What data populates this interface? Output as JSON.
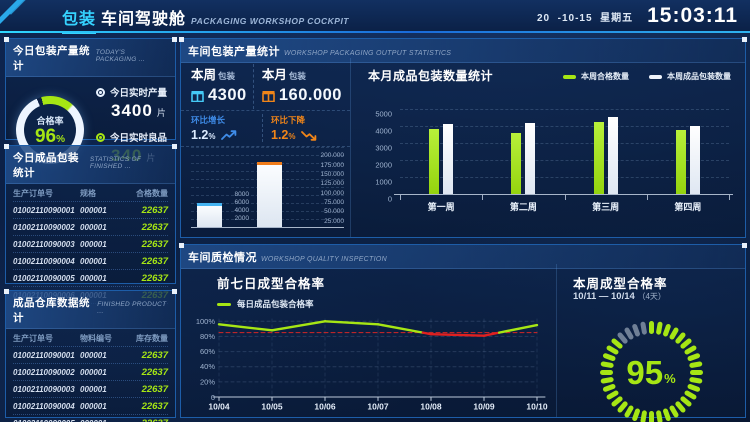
{
  "header": {
    "title_highlight": "包装",
    "title_rest": "车间驾驶舱",
    "subtitle_en": "PACKAGING WORKSHOP COCKPIT",
    "date": "20  -10-15",
    "weekday": "星期五",
    "time": "15:03:11"
  },
  "colors": {
    "accent_cyan": "#35d3ff",
    "accent_green": "#a6e614",
    "accent_orange": "#f08519",
    "accent_blue": "#3f8ce8",
    "alert_red": "#d42626",
    "bar_white": "#eef3fa",
    "panel_border": "#1d5da8"
  },
  "panels": {
    "today": {
      "title": "今日包装产量统计",
      "subtitle_en": "TODAY'S PACKAGING ...",
      "gauge": {
        "label": "合格率",
        "value": "96",
        "unit": "%"
      },
      "metrics": [
        {
          "label": "今日实时产量",
          "value": "3400",
          "unit": "片"
        },
        {
          "label": "今日实时良品",
          "value": "340",
          "unit": "片"
        }
      ]
    },
    "finished": {
      "title": "今日成品包装统计",
      "subtitle_en": "STATISTICS OF FINISHED ...",
      "columns": [
        "生产订单号",
        "规格",
        "合格数量"
      ],
      "rows": [
        [
          "01002110090001",
          "000001",
          "22637"
        ],
        [
          "01002110090002",
          "000001",
          "22637"
        ],
        [
          "01002110090003",
          "000001",
          "22637"
        ],
        [
          "01002110090004",
          "000001",
          "22637"
        ],
        [
          "01002110090005",
          "000001",
          "22637"
        ],
        [
          "01002110090006",
          "000001",
          "22637"
        ]
      ]
    },
    "warehouse": {
      "title": "成品仓库数据统计",
      "subtitle_en": "FINISHED PRODUCT ...",
      "columns": [
        "生产订单号",
        "物料编号",
        "库存数量"
      ],
      "rows": [
        [
          "01002110090001",
          "000001",
          "22637"
        ],
        [
          "01002110090002",
          "000001",
          "22637"
        ],
        [
          "01002110090003",
          "000001",
          "22637"
        ],
        [
          "01002110090004",
          "000001",
          "22637"
        ],
        [
          "01002110090005",
          "000001",
          "22637"
        ]
      ]
    },
    "workshop": {
      "title": "车间包装产量统计",
      "subtitle_en": "WORKSHOP PACKAGING OUTPUT STATISTICS",
      "week_label": "本周",
      "week_sub": "包装",
      "week_value": "4300",
      "month_label": "本月",
      "month_sub": "包装",
      "month_value": "160.000",
      "growth_label": "环比增长",
      "growth_value": "1.2",
      "growth_unit": "%",
      "decline_label": "环比下降",
      "decline_value": "1.2",
      "decline_unit": "%"
    },
    "quality": {
      "title": "车间质检情况",
      "subtitle_en": "WORKSHOP QUALITY INSPECTION",
      "line_title": "前七日成型合格率",
      "weekly_title": "本周成型合格率",
      "weekly_range": "10/11 — 10/14",
      "weekly_note": "（4天）",
      "weekly_value": "95",
      "weekly_unit": "%"
    }
  },
  "chart_data": [
    {
      "id": "weekly_monthly_output",
      "type": "bar",
      "title": "车间包装产量统计",
      "categories": [
        "本周包装",
        "本月包装"
      ],
      "values": [
        4300,
        160000
      ],
      "left_axis": {
        "ticks": [
          "8000",
          "6000",
          "4000",
          "2000"
        ],
        "max": 16000
      },
      "right_axis": {
        "ticks": [
          "200.000",
          "175.000",
          "150.000",
          "125.000",
          "100.000",
          "75.000",
          "50.000",
          "25.000"
        ],
        "max": 206000
      },
      "grid": true
    },
    {
      "id": "monthly_packaging",
      "type": "bar",
      "title": "本月成品包装数量统计",
      "categories": [
        "第一周",
        "第二周",
        "第三周",
        "第四周"
      ],
      "series": [
        {
          "name": "本周合格数量",
          "color": "#a6e614",
          "values": [
            3850,
            3600,
            4250,
            3750
          ]
        },
        {
          "name": "本周成品包装数量",
          "color": "#eef3fa",
          "values": [
            4100,
            4200,
            4550,
            4000
          ]
        }
      ],
      "y_ticks": [
        0,
        1000,
        2000,
        3000,
        4000,
        5000
      ],
      "ylim": [
        0,
        5000
      ],
      "grid": true,
      "legend_position": "top-right"
    },
    {
      "id": "daily_pass_rate",
      "type": "line",
      "title": "前七日成型合格率",
      "legend": [
        "每日成品包装合格率"
      ],
      "x": [
        "10/04",
        "10/05",
        "10/06",
        "10/07",
        "10/08",
        "10/09",
        "10/10"
      ],
      "values": [
        96,
        88,
        100,
        96,
        83,
        81,
        95
      ],
      "threshold": 85,
      "line_color": "#a6e614",
      "below_threshold_color": "#e02020",
      "threshold_color": "#d42626",
      "y_ticks": [
        "100%",
        "80%",
        "60%",
        "40%",
        "20%",
        "0"
      ],
      "ylim": [
        0,
        103
      ],
      "grid": true
    },
    {
      "id": "today_pass_rate_gauge",
      "type": "gauge",
      "label": "合格率",
      "value": 96,
      "max": 100
    },
    {
      "id": "weekly_pass_rate_gauge",
      "type": "gauge",
      "label": "本周成型合格率",
      "value": 95,
      "max": 100
    }
  ]
}
